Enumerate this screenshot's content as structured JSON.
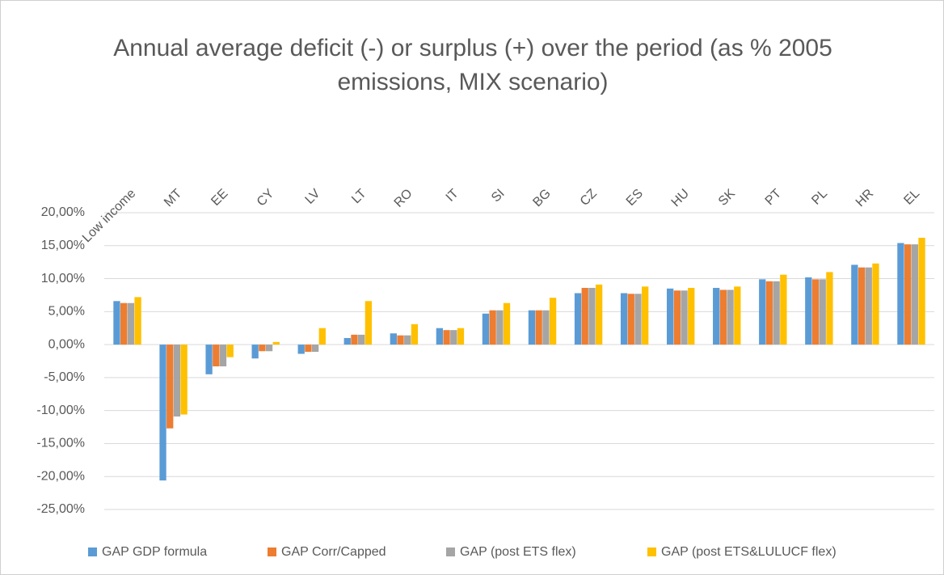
{
  "chart_data": {
    "type": "bar",
    "title": "Annual average deficit (-) or surplus (+) over the period (as % 2005 emissions, MIX scenario)",
    "categories": [
      "Low income",
      "MT",
      "EE",
      "CY",
      "LV",
      "LT",
      "RO",
      "IT",
      "SI",
      "BG",
      "CZ",
      "ES",
      "HU",
      "SK",
      "PT",
      "PL",
      "HR",
      "EL"
    ],
    "series": [
      {
        "name": "GAP GDP formula",
        "color": "#5b9bd5",
        "values": [
          6.6,
          -20.6,
          -4.5,
          -2.1,
          -1.4,
          1.0,
          1.7,
          2.5,
          4.7,
          5.2,
          7.8,
          7.8,
          8.5,
          8.6,
          9.9,
          10.2,
          12.1,
          15.4
        ]
      },
      {
        "name": "GAP Corr/Capped",
        "color": "#ed7d31",
        "values": [
          6.3,
          -12.7,
          -3.3,
          -1.0,
          -1.1,
          1.5,
          1.4,
          2.2,
          5.2,
          5.2,
          8.6,
          7.7,
          8.2,
          8.3,
          9.6,
          9.9,
          11.7,
          15.2
        ]
      },
      {
        "name": "GAP (post ETS flex)",
        "color": "#a5a5a5",
        "values": [
          6.3,
          -10.9,
          -3.3,
          -1.0,
          -1.1,
          1.5,
          1.4,
          2.2,
          5.2,
          5.2,
          8.6,
          7.7,
          8.2,
          8.3,
          9.6,
          9.9,
          11.7,
          15.2
        ]
      },
      {
        "name": "GAP (post ETS&LULUCF flex)",
        "color": "#ffc000",
        "values": [
          7.2,
          -10.6,
          -1.9,
          0.4,
          2.5,
          6.6,
          3.1,
          2.5,
          6.3,
          7.1,
          9.1,
          8.8,
          8.6,
          8.8,
          10.6,
          11.0,
          12.3,
          16.2
        ]
      }
    ],
    "ylim": [
      -25,
      20
    ],
    "yticks": [
      {
        "value": -25,
        "label": "-25,00%"
      },
      {
        "value": -20,
        "label": "-20,00%"
      },
      {
        "value": -15,
        "label": "-15,00%"
      },
      {
        "value": -10,
        "label": "-10,00%"
      },
      {
        "value": -5,
        "label": "-5,00%"
      },
      {
        "value": 0,
        "label": "0,00%"
      },
      {
        "value": 5,
        "label": "5,00%"
      },
      {
        "value": 10,
        "label": "10,00%"
      },
      {
        "value": 15,
        "label": "15,00%"
      },
      {
        "value": 20,
        "label": "20,00%"
      }
    ],
    "grid": true,
    "legend": "bottom"
  }
}
